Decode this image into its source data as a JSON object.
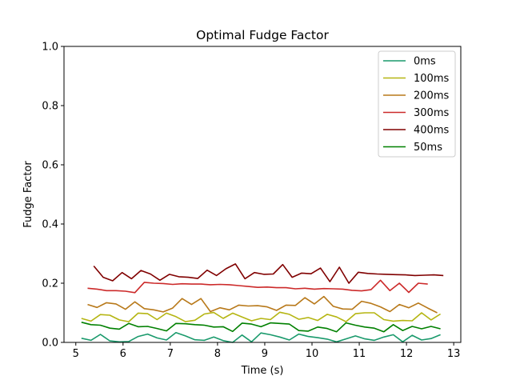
{
  "chart_data": {
    "type": "line",
    "title": "Optimal Fudge Factor",
    "xlabel": "Time (s)",
    "ylabel": "Fudge Factor",
    "xlim": [
      4.75,
      13.15
    ],
    "ylim": [
      0.0,
      1.0
    ],
    "xticks": [
      5,
      6,
      7,
      8,
      9,
      10,
      11,
      12,
      13
    ],
    "yticks": [
      0.0,
      0.2,
      0.4,
      0.6,
      0.8,
      1.0
    ],
    "xtick_labels": [
      "5",
      "6",
      "7",
      "8",
      "9",
      "10",
      "11",
      "12",
      "13"
    ],
    "ytick_labels": [
      "0.0",
      "0.2",
      "0.4",
      "0.6",
      "0.8",
      "1.0"
    ],
    "grid": false,
    "legend_position": "top-right",
    "series": [
      {
        "name": "0ms",
        "color": "#1a9a6c",
        "x": [
          5.12,
          5.32,
          5.52,
          5.72,
          5.92,
          6.12,
          6.32,
          6.52,
          6.72,
          6.92,
          7.12,
          7.32,
          7.52,
          7.72,
          7.92,
          8.12,
          8.32,
          8.52,
          8.72,
          8.92,
          9.12,
          9.32,
          9.52,
          9.72,
          9.92,
          10.12,
          10.32,
          10.52,
          10.72,
          10.92,
          11.12,
          11.32,
          11.52,
          11.72,
          11.92,
          12.12,
          12.32,
          12.52,
          12.72
        ],
        "y": [
          0.014,
          0.007,
          0.027,
          0.005,
          0.002,
          0.003,
          0.02,
          0.028,
          0.015,
          0.008,
          0.033,
          0.022,
          0.009,
          0.007,
          0.018,
          0.006,
          0.0,
          0.025,
          0.002,
          0.032,
          0.026,
          0.018,
          0.008,
          0.028,
          0.02,
          0.016,
          0.011,
          0.002,
          0.012,
          0.022,
          0.012,
          0.007,
          0.018,
          0.026,
          0.002,
          0.024,
          0.008,
          0.013,
          0.026
        ]
      },
      {
        "name": "100ms",
        "color": "#b5b512",
        "x": [
          5.12,
          5.32,
          5.52,
          5.72,
          5.92,
          6.12,
          6.32,
          6.52,
          6.72,
          6.92,
          7.12,
          7.32,
          7.52,
          7.72,
          7.92,
          8.12,
          8.32,
          8.52,
          8.72,
          8.92,
          9.12,
          9.32,
          9.52,
          9.72,
          9.92,
          10.12,
          10.32,
          10.52,
          10.72,
          10.92,
          11.12,
          11.32,
          11.52,
          11.72,
          11.92,
          12.12,
          12.32,
          12.52,
          12.72
        ],
        "y": [
          0.081,
          0.072,
          0.094,
          0.092,
          0.076,
          0.07,
          0.099,
          0.097,
          0.077,
          0.099,
          0.087,
          0.07,
          0.075,
          0.096,
          0.101,
          0.081,
          0.099,
          0.086,
          0.073,
          0.081,
          0.077,
          0.102,
          0.095,
          0.078,
          0.084,
          0.074,
          0.095,
          0.086,
          0.07,
          0.097,
          0.1,
          0.1,
          0.077,
          0.072,
          0.074,
          0.073,
          0.1,
          0.076,
          0.096
        ]
      },
      {
        "name": "200ms",
        "color": "#b8791a",
        "x": [
          5.25,
          5.45,
          5.65,
          5.85,
          6.05,
          6.25,
          6.45,
          6.65,
          6.85,
          7.05,
          7.25,
          7.45,
          7.65,
          7.85,
          8.05,
          8.25,
          8.45,
          8.65,
          8.85,
          9.05,
          9.25,
          9.45,
          9.65,
          9.85,
          10.05,
          10.25,
          10.45,
          10.65,
          10.85,
          11.05,
          11.25,
          11.45,
          11.65,
          11.85,
          12.05,
          12.25,
          12.45,
          12.65
        ],
        "y": [
          0.128,
          0.118,
          0.134,
          0.13,
          0.112,
          0.137,
          0.114,
          0.11,
          0.103,
          0.116,
          0.148,
          0.128,
          0.148,
          0.104,
          0.117,
          0.11,
          0.126,
          0.123,
          0.124,
          0.12,
          0.108,
          0.126,
          0.125,
          0.151,
          0.13,
          0.155,
          0.122,
          0.113,
          0.112,
          0.139,
          0.132,
          0.12,
          0.104,
          0.128,
          0.117,
          0.133,
          0.116,
          0.1
        ]
      },
      {
        "name": "300ms",
        "color": "#cc2a2a",
        "x": [
          5.25,
          5.45,
          5.65,
          5.85,
          6.05,
          6.25,
          6.45,
          6.65,
          6.85,
          7.05,
          7.25,
          7.45,
          7.65,
          7.85,
          8.05,
          8.25,
          8.45,
          8.65,
          8.85,
          9.05,
          9.25,
          9.45,
          9.65,
          9.85,
          10.05,
          10.25,
          10.45,
          10.65,
          10.85,
          11.05,
          11.25,
          11.45,
          11.65,
          11.85,
          12.05,
          12.25,
          12.45
        ],
        "y": [
          0.183,
          0.18,
          0.175,
          0.175,
          0.173,
          0.168,
          0.203,
          0.2,
          0.199,
          0.196,
          0.198,
          0.197,
          0.197,
          0.195,
          0.196,
          0.195,
          0.192,
          0.189,
          0.186,
          0.187,
          0.185,
          0.185,
          0.181,
          0.183,
          0.18,
          0.182,
          0.181,
          0.18,
          0.176,
          0.174,
          0.178,
          0.21,
          0.175,
          0.2,
          0.169,
          0.2,
          0.197
        ]
      },
      {
        "name": "400ms",
        "color": "#800000",
        "x": [
          5.38,
          5.58,
          5.78,
          5.98,
          6.18,
          6.38,
          6.58,
          6.78,
          6.98,
          7.18,
          7.38,
          7.58,
          7.78,
          7.98,
          8.18,
          8.38,
          8.58,
          8.78,
          8.98,
          9.18,
          9.38,
          9.58,
          9.78,
          9.98,
          10.18,
          10.38,
          10.58,
          10.78,
          10.98,
          11.18,
          11.38,
          11.58,
          11.78,
          11.98,
          12.18,
          12.38,
          12.58,
          12.78
        ],
        "y": [
          0.258,
          0.22,
          0.208,
          0.236,
          0.215,
          0.243,
          0.231,
          0.21,
          0.23,
          0.222,
          0.22,
          0.216,
          0.244,
          0.226,
          0.249,
          0.265,
          0.215,
          0.236,
          0.23,
          0.231,
          0.263,
          0.22,
          0.234,
          0.232,
          0.251,
          0.205,
          0.254,
          0.2,
          0.237,
          0.233,
          0.231,
          0.23,
          0.229,
          0.228,
          0.226,
          0.227,
          0.228,
          0.226
        ]
      },
      {
        "name": "50ms",
        "color": "#008000",
        "x": [
          5.12,
          5.32,
          5.52,
          5.72,
          5.92,
          6.12,
          6.32,
          6.52,
          6.72,
          6.92,
          7.12,
          7.32,
          7.52,
          7.72,
          7.92,
          8.12,
          8.32,
          8.52,
          8.72,
          8.92,
          9.12,
          9.32,
          9.52,
          9.72,
          9.92,
          10.12,
          10.32,
          10.52,
          10.72,
          10.92,
          11.12,
          11.32,
          11.52,
          11.72,
          11.92,
          12.12,
          12.32,
          12.52,
          12.72
        ],
        "y": [
          0.068,
          0.06,
          0.058,
          0.048,
          0.045,
          0.064,
          0.053,
          0.054,
          0.047,
          0.039,
          0.064,
          0.063,
          0.06,
          0.058,
          0.052,
          0.053,
          0.037,
          0.065,
          0.062,
          0.053,
          0.066,
          0.064,
          0.062,
          0.04,
          0.038,
          0.052,
          0.047,
          0.036,
          0.066,
          0.058,
          0.052,
          0.048,
          0.036,
          0.06,
          0.04,
          0.054,
          0.046,
          0.054,
          0.046
        ]
      }
    ]
  }
}
